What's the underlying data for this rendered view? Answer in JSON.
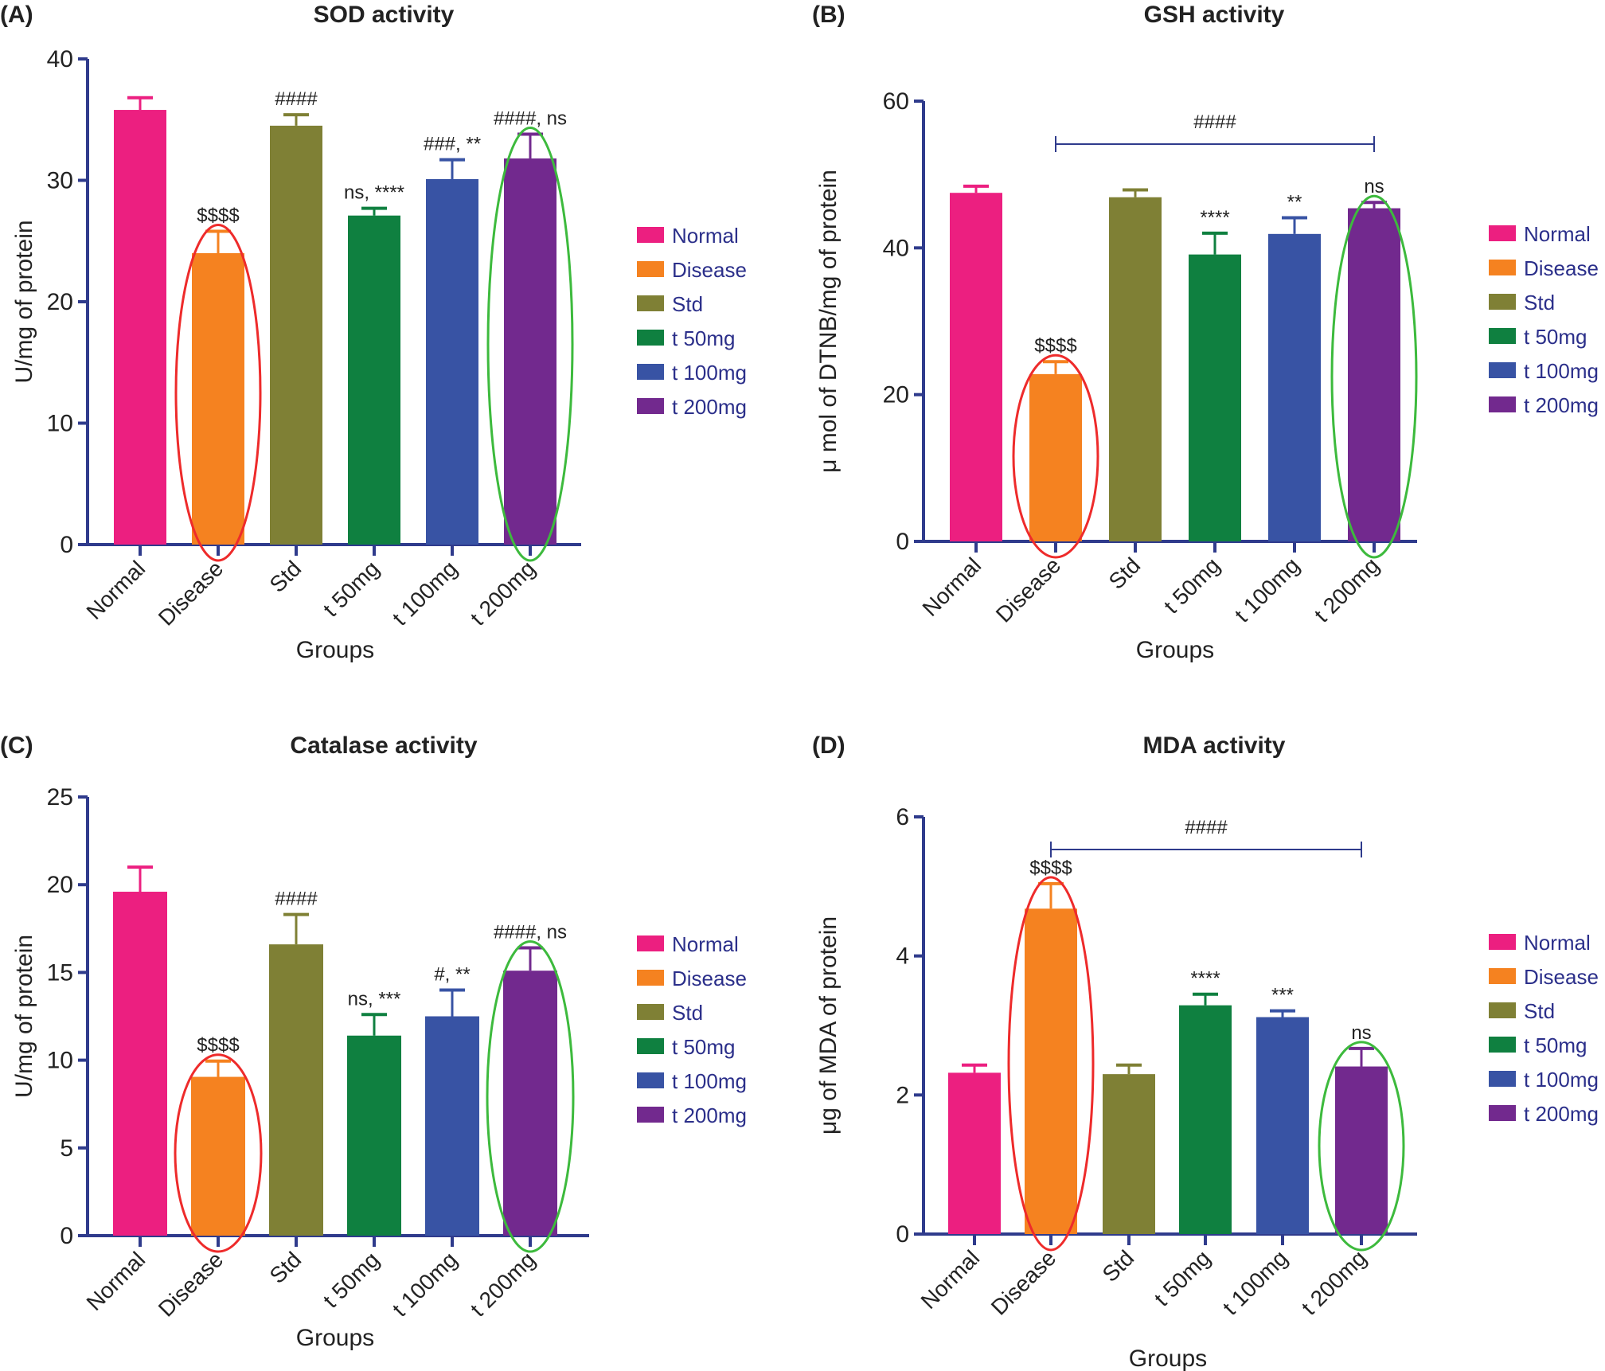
{
  "figure": {
    "groups": [
      "Normal",
      "Disease",
      "Std",
      "t 50mg",
      "t 100mg",
      "t 200mg"
    ],
    "colors": {
      "Normal": "#ec1f80",
      "Disease": "#f58220",
      "Std": "#7f8035",
      "t 50mg": "#0f8040",
      "t 100mg": "#3853a4",
      "t 200mg": "#72298e",
      "axis": "#2f3b8c",
      "legend_text": "#2b2f8a",
      "highlight_disease": "#ee2b2b",
      "highlight_treatment": "#3dba3d"
    }
  },
  "chart_data": [
    {
      "panel": "(A)",
      "type": "bar",
      "title": "SOD activity",
      "xlabel": "Groups",
      "ylabel": "U/mg of protein",
      "ylim": [
        0,
        40
      ],
      "yticks": [
        0,
        10,
        20,
        30,
        40
      ],
      "categories": [
        "Normal",
        "Disease",
        "Std",
        "t 50mg",
        "t 100mg",
        "t 200mg"
      ],
      "values": [
        35.8,
        24.0,
        34.5,
        27.1,
        30.1,
        31.8
      ],
      "error_upper": [
        36.8,
        25.8,
        35.4,
        27.7,
        31.7,
        33.8
      ],
      "annotations": [
        "",
        "$$$$",
        "####",
        "ns, ****",
        "###, **",
        "####, ns"
      ],
      "bracket": null,
      "legend": [
        "Normal",
        "Disease",
        "Std",
        "t 50mg",
        "t 100mg",
        "t 200mg"
      ],
      "legend_position": "right",
      "highlight": {
        "red_ellipse": "Disease",
        "green_ellipse": "t 200mg"
      }
    },
    {
      "panel": "(B)",
      "type": "bar",
      "title": "GSH activity",
      "xlabel": "Groups",
      "ylabel": "μ mol of DTNB/mg of protein",
      "ylim": [
        0,
        60
      ],
      "yticks": [
        0,
        20,
        40,
        60
      ],
      "categories": [
        "Normal",
        "Disease",
        "Std",
        "t 50mg",
        "t 100mg",
        "t 200mg"
      ],
      "values": [
        47.5,
        22.8,
        46.9,
        39.1,
        41.9,
        45.4
      ],
      "error_upper": [
        48.4,
        24.5,
        47.9,
        42.0,
        44.1,
        46.2
      ],
      "annotations": [
        "",
        "$$$$",
        "",
        "****",
        "**",
        "ns"
      ],
      "bracket": {
        "from": "Disease",
        "to": "t 200mg",
        "label": "####"
      },
      "legend": [
        "Normal",
        "Disease",
        "Std",
        "t 50mg",
        "t 100mg",
        "t 200mg"
      ],
      "legend_position": "right",
      "highlight": {
        "red_ellipse": "Disease",
        "green_ellipse": "t 200mg"
      }
    },
    {
      "panel": "(C)",
      "type": "bar",
      "title": "Catalase activity",
      "xlabel": "Groups",
      "ylabel": "U/mg of protein",
      "ylim": [
        0,
        25
      ],
      "yticks": [
        0,
        5,
        10,
        15,
        20,
        25
      ],
      "categories": [
        "Normal",
        "Disease",
        "Std",
        "t 50mg",
        "t 100mg",
        "t 200mg"
      ],
      "values": [
        19.6,
        9.05,
        16.6,
        11.4,
        12.5,
        15.1
      ],
      "error_upper": [
        21.0,
        9.95,
        18.3,
        12.6,
        14.0,
        16.4
      ],
      "annotations": [
        "",
        "$$$$",
        "####",
        "ns, ***",
        "#, **",
        "####, ns"
      ],
      "bracket": null,
      "legend": [
        "Normal",
        "Disease",
        "Std",
        "t 50mg",
        "t 100mg",
        "t 200mg"
      ],
      "legend_position": "right",
      "highlight": {
        "red_ellipse": "Disease",
        "green_ellipse": "t 200mg"
      }
    },
    {
      "panel": "(D)",
      "type": "bar",
      "title": "MDA activity",
      "xlabel": "Groups",
      "ylabel": "μg of MDA of protein",
      "ylim": [
        0,
        6
      ],
      "yticks": [
        0,
        2,
        4,
        6
      ],
      "categories": [
        "Normal",
        "Disease",
        "Std",
        "t 50mg",
        "t 100mg",
        "t 200mg"
      ],
      "values": [
        2.32,
        4.68,
        2.3,
        3.29,
        3.12,
        2.41
      ],
      "error_upper": [
        2.43,
        5.04,
        2.43,
        3.45,
        3.21,
        2.67
      ],
      "annotations": [
        "",
        "$$$$",
        "",
        "****",
        "***",
        "ns"
      ],
      "bracket": {
        "from": "Disease",
        "to": "t 200mg",
        "label": "####"
      },
      "legend": [
        "Normal",
        "Disease",
        "Std",
        "t 50mg",
        "t 100mg",
        "t 200mg"
      ],
      "legend_position": "right",
      "highlight": {
        "red_ellipse": "Disease",
        "green_ellipse": "t 200mg"
      }
    }
  ]
}
